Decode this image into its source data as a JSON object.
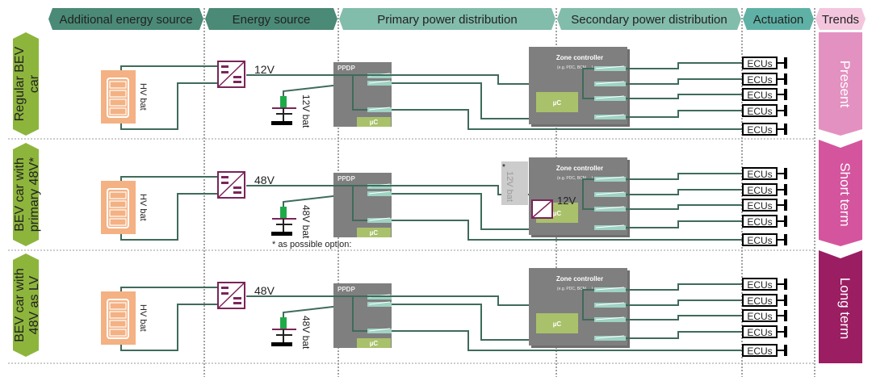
{
  "columns": [
    {
      "label": "Additional energy source",
      "color": "#4a8a76"
    },
    {
      "label": "Energy source",
      "color": "#4a8a76"
    },
    {
      "label": "Primary power distribution",
      "color": "#82bcaa"
    },
    {
      "label": "Secondary power distribution",
      "color": "#82bcaa"
    },
    {
      "label": "Actuation",
      "color": "#5fb1a6"
    },
    {
      "label": "Trends",
      "color": "#f3c6de"
    }
  ],
  "rows": [
    {
      "label": "Regular BEV car",
      "lines": [
        "Regular BEV",
        "car"
      ],
      "converter_voltage": "12V",
      "lv_battery": "12V bat",
      "trend": "Present",
      "trend_color": "#e391c1",
      "optional": false
    },
    {
      "label": "BEV car with primary 48V*",
      "lines": [
        "BEV car with",
        "primary 48V*"
      ],
      "converter_voltage": "48V",
      "lv_battery": "48V bat",
      "trend": "Short term",
      "trend_color": "#d4559e",
      "optional": true
    },
    {
      "label": "BEV car with 48V as LV",
      "lines": [
        "BEV car with",
        "48V as LV"
      ],
      "converter_voltage": "48V",
      "lv_battery": "48V bat",
      "trend": "Long term",
      "trend_color": "#9b1e63",
      "optional": false
    }
  ],
  "labels": {
    "hv_battery": "HV bat",
    "ppdp": "PPDP",
    "microcontroller": "µC",
    "zone_controller": "Zone controller",
    "zone_examples": "(e.g. PDC, BCM, ...)",
    "ecus": "ECUs",
    "zone_converter_voltage": "12V",
    "optional_battery": "12V bat",
    "optional_star": "*",
    "footnote": "* as possible option:"
  },
  "colors": {
    "row_label": "#8db53c",
    "wire": "#3f6b5b",
    "hv_battery": "#f4b183",
    "converter": "#7b2458",
    "box": "#7f7f7f",
    "uc": "#a9c16a"
  }
}
